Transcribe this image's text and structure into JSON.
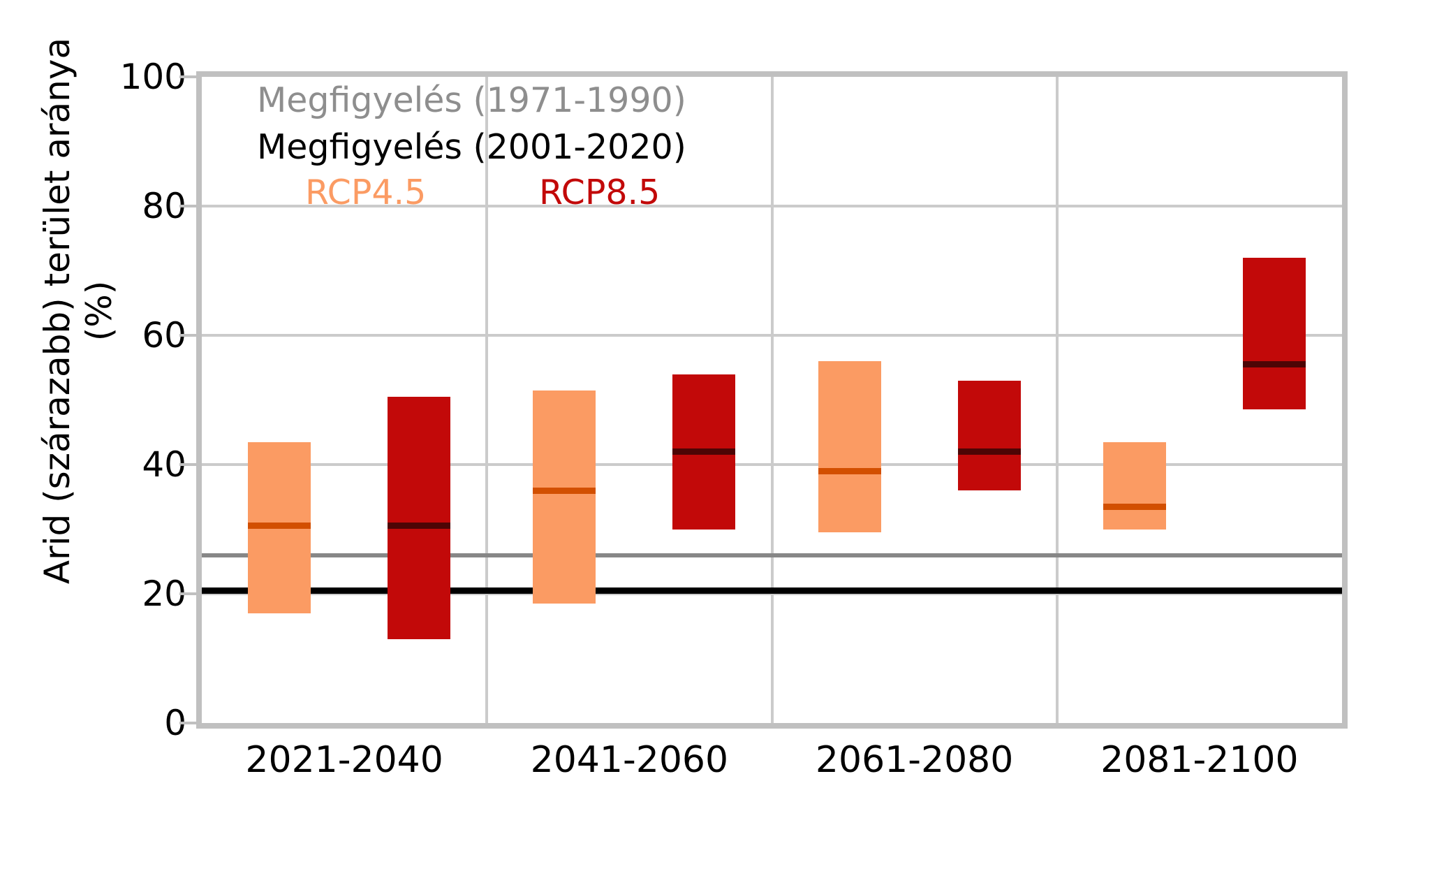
{
  "y_axis": {
    "label": "Arid (szárazabb) terület aránya (%)",
    "ticks": [
      0,
      20,
      40,
      60,
      80,
      100
    ],
    "min": 0,
    "max": 100
  },
  "x_axis": {
    "categories": [
      "2021-2040",
      "2041-2060",
      "2061-2080",
      "2081-2100"
    ]
  },
  "legend": {
    "items": [
      {
        "label": "Megfigyelés (1971-1990)",
        "color": "#8e8e8e"
      },
      {
        "label": "Megfigyelés (2001-2020)",
        "color": "#000000"
      },
      {
        "label": "RCP4.5",
        "color": "#fb9b63"
      },
      {
        "label": "RCP8.5",
        "color": "#c20909"
      }
    ]
  },
  "chart_data": {
    "type": "bar",
    "subtype": "floating-range-bars-with-median",
    "title": "",
    "xlabel": "",
    "ylabel": "Arid (szárazabb) terület aránya (%)",
    "ylim": [
      0,
      100
    ],
    "grid": true,
    "categories": [
      "2021-2040",
      "2041-2060",
      "2061-2080",
      "2081-2100"
    ],
    "series": [
      {
        "name": "RCP4.5",
        "fill_color": "#fb9b63",
        "median_color": "#d24f00",
        "ranges": [
          [
            17,
            43.5
          ],
          [
            18.5,
            51.5
          ],
          [
            29.5,
            56
          ],
          [
            30,
            43.5
          ]
        ],
        "medians": [
          30.5,
          36,
          39,
          33.5
        ]
      },
      {
        "name": "RCP8.5",
        "fill_color": "#c20909",
        "median_color": "#4d0505",
        "ranges": [
          [
            13,
            50.5
          ],
          [
            30,
            54
          ],
          [
            36,
            53
          ],
          [
            48.5,
            72
          ]
        ],
        "medians": [
          30.5,
          42,
          42,
          55.5
        ]
      }
    ],
    "reference_lines": [
      {
        "name": "Megfigyelés (1971-1990)",
        "value": 26,
        "color": "#878787",
        "thickness": 6
      },
      {
        "name": "Megfigyelés (2001-2020)",
        "value": 20.5,
        "color": "#000000",
        "thickness": 9
      }
    ],
    "legend_position": "upper-left-inside"
  }
}
